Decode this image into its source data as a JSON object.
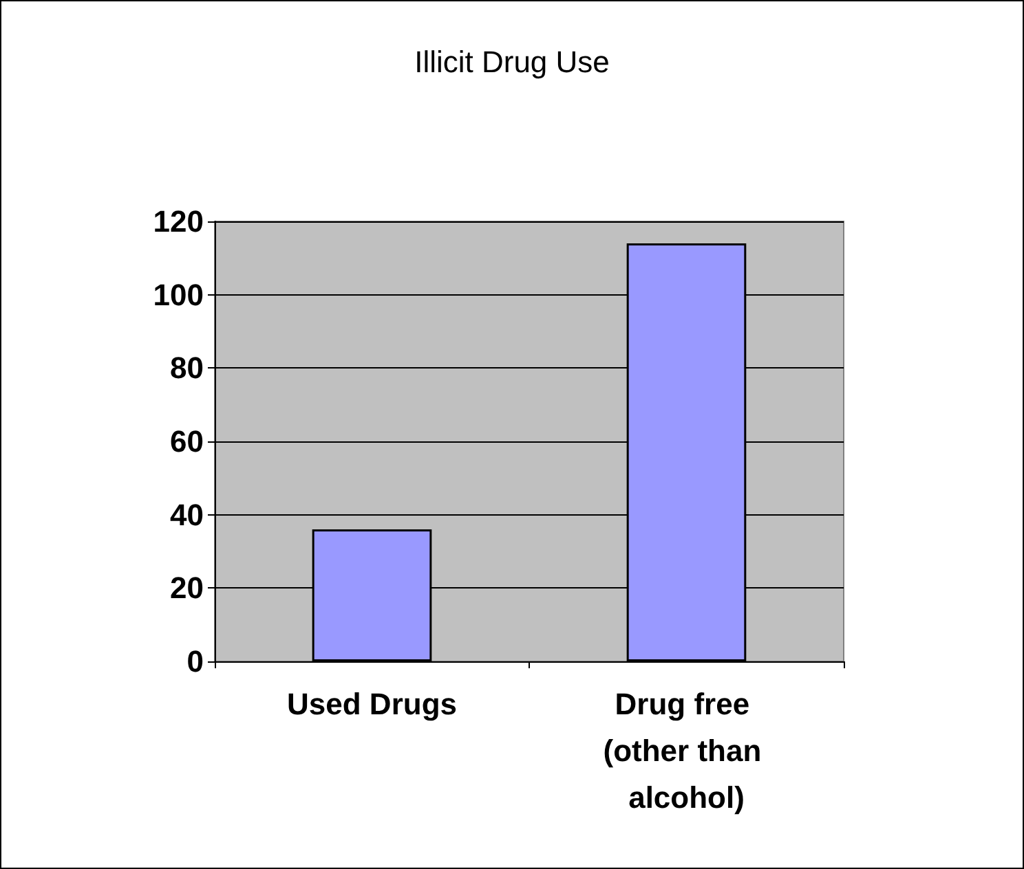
{
  "chart_data": {
    "type": "bar",
    "title": "Illicit Drug Use",
    "categories": [
      "Used Drugs",
      "Drug free (other than alcohol)"
    ],
    "values": [
      36,
      114
    ],
    "color": "#9999ff",
    "ylim": [
      0,
      120
    ],
    "yticks": [
      0,
      20,
      40,
      60,
      80,
      100,
      120
    ],
    "grid": "y"
  }
}
